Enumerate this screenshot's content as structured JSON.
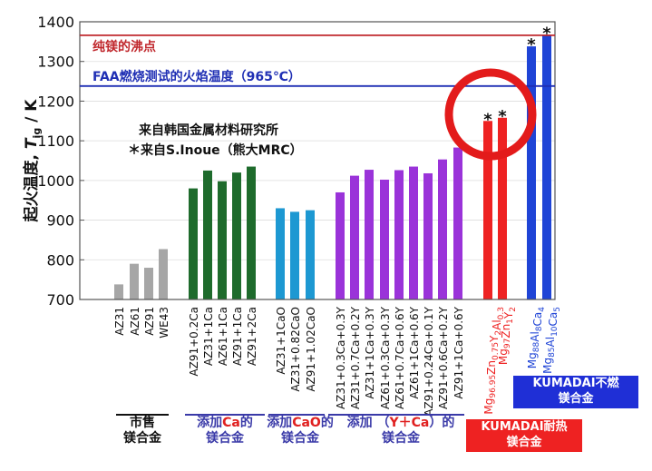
{
  "chart_data": {
    "type": "bar",
    "ylabel_main": "起火温度, ",
    "ylabel_symbol": "T",
    "ylabel_sub": "ig",
    "ylabel_unit": " / K",
    "ylim": [
      700,
      1400
    ],
    "yticks": [
      700,
      800,
      900,
      1000,
      1100,
      1200,
      1300,
      1400
    ],
    "reference_lines": [
      {
        "label": "纯镁的沸点",
        "value": 1366,
        "color": "#c0282d"
      },
      {
        "label": "FAA燃烧测试的火焰温度（965℃）",
        "value": 1238,
        "color": "#1f2fb4"
      }
    ],
    "source_note": [
      "来自韩国金属材料研究所",
      "＊来自S.Inoue（熊大MRC）"
    ],
    "groups": [
      {
        "color": "#a6a6a6",
        "bars": [
          {
            "label": "AZ31",
            "value": 738
          },
          {
            "label": "AZ61",
            "value": 790
          },
          {
            "label": "AZ91",
            "value": 780
          },
          {
            "label": "WE43",
            "value": 827
          }
        ]
      },
      {
        "color": "#1e6b2c",
        "bars": [
          {
            "label": "AZ91+0.2Ca",
            "value": 980
          },
          {
            "label": "AZ31+1Ca",
            "value": 1025
          },
          {
            "label": "AZ61+1Ca",
            "value": 998
          },
          {
            "label": "AZ91+1Ca",
            "value": 1020
          },
          {
            "label": "AZ91+2Ca",
            "value": 1035
          }
        ]
      },
      {
        "color": "#1d98d2",
        "bars": [
          {
            "label": "AZ31+1CaO",
            "value": 930
          },
          {
            "label": "AZ31+0.82CaO",
            "value": 921
          },
          {
            "label": "AZ91+1.02CaO",
            "value": 925
          }
        ]
      },
      {
        "color": "#9a33d9",
        "bars": [
          {
            "label": "AZ31+0.3Ca+0.3Y",
            "value": 970
          },
          {
            "label": "AZ31+0.7Ca+0.2Y",
            "value": 1012
          },
          {
            "label": "AZ31+1Ca+0.3Y",
            "value": 1027
          },
          {
            "label": "AZ61+0.3Ca+0.3Y",
            "value": 1002
          },
          {
            "label": "AZ61+0.7Ca+0.6Y",
            "value": 1026
          },
          {
            "label": "AZ61+1Ca+0.6Y",
            "value": 1035
          },
          {
            "label": "AZ91+0.24Ca+0.1Y",
            "value": 1018
          },
          {
            "label": "AZ91+0.6Ca+0.2Y",
            "value": 1053
          },
          {
            "label": "AZ91+1Ca+0.6Y",
            "value": 1083
          }
        ]
      },
      {
        "color": "#ee2222",
        "bars": [
          {
            "label": "Mg96.95Zn0.75Y2Al0.3",
            "value": 1150,
            "starred": true
          },
          {
            "label": "Mg97Zn1Y2",
            "value": 1158,
            "starred": true
          }
        ]
      },
      {
        "color": "#1f44d6",
        "bars": [
          {
            "label": "Mg88Al8Ca4",
            "value": 1338,
            "starred": true
          },
          {
            "label": "Mg85Al10Ca5",
            "value": 1367,
            "starred": true
          }
        ]
      }
    ]
  },
  "group_labels": {
    "commercial": [
      "市售",
      "镁合金"
    ],
    "ca_prefix": "添加",
    "ca_element": "Ca",
    "ca_suffix": "的",
    "ca_line2": "镁合金",
    "cao_prefix": "添加",
    "cao_element": "CaO",
    "cao_suffix": "的",
    "cao_line2": "镁合金",
    "ycay_prefix": "添加 （",
    "ycay_element": "Y＋Ca",
    "ycay_suffix": "）的",
    "ycay_line2": "镁合金"
  },
  "badges": {
    "nonflammable": [
      "KUMADAI不燃",
      "镁合金"
    ],
    "heatresistant": [
      "KUMADAI耐热",
      "镁合金"
    ]
  },
  "colors": {
    "highlight_circle": "#e31b1b",
    "badge_blue": "#1f2fd6",
    "badge_red": "#ee2222"
  }
}
